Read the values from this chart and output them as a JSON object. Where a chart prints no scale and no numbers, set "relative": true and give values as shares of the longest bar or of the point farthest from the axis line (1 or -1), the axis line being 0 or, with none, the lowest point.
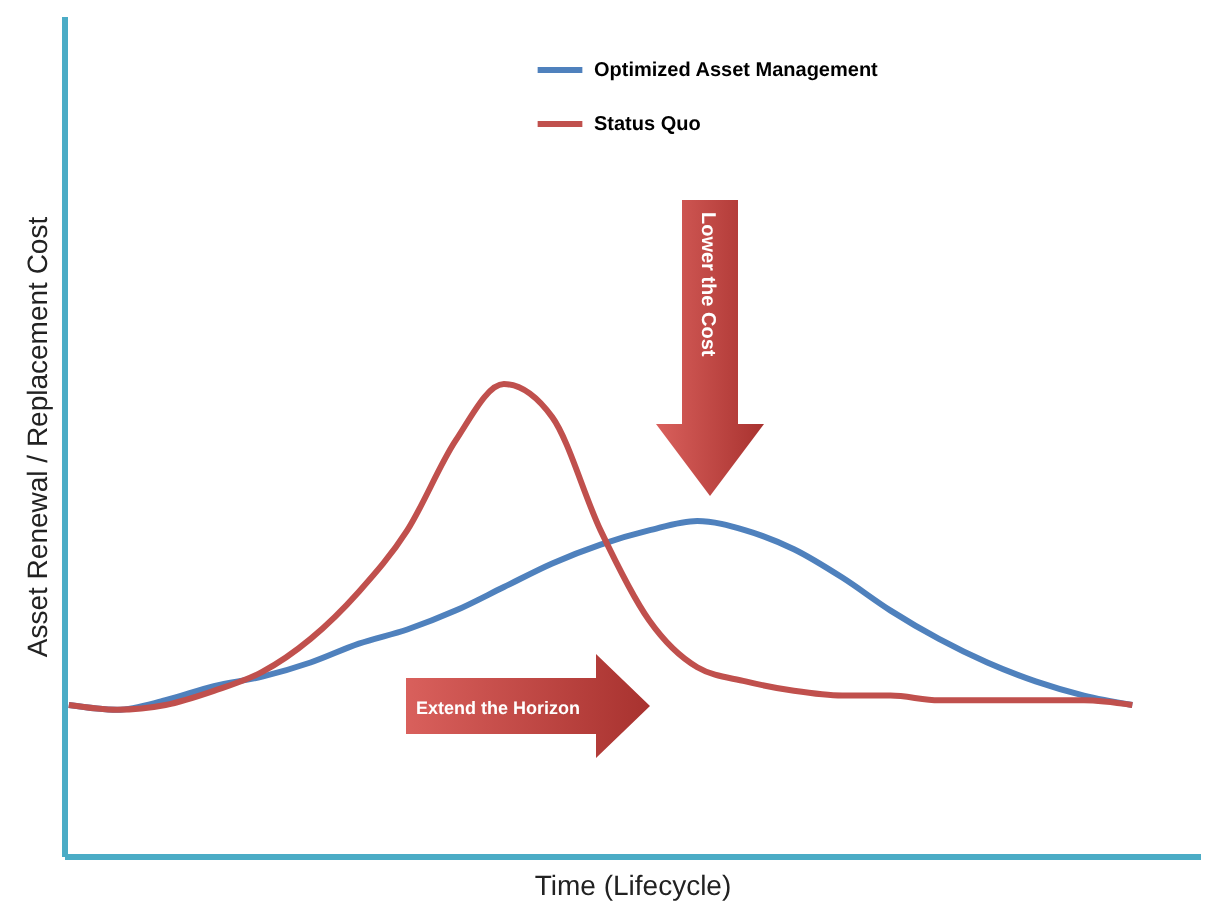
{
  "chart_data": {
    "type": "line",
    "relative": true,
    "xlabel": "Time (Lifecycle)",
    "ylabel": "Asset Renewal / Replacement Cost",
    "legend": "top",
    "categories": [
      null,
      null,
      null,
      null,
      null,
      null,
      null,
      null,
      null,
      null,
      null,
      null,
      null,
      null,
      null,
      null,
      null,
      null,
      null,
      null,
      null,
      null,
      null
    ],
    "series": [
      {
        "name": "Optimized Asset Management",
        "color": "#4f81bd",
        "values": [
          0.32,
          0.31,
          0.33,
          0.36,
          0.38,
          0.41,
          0.45,
          0.48,
          0.52,
          0.57,
          0.62,
          0.66,
          0.69,
          0.71,
          0.69,
          0.65,
          0.59,
          0.52,
          0.46,
          0.41,
          0.37,
          0.34,
          0.32
        ]
      },
      {
        "name": "Status Quo",
        "color": "#c0504d",
        "values": [
          0.32,
          0.31,
          0.32,
          0.35,
          0.39,
          0.46,
          0.56,
          0.69,
          0.88,
          1,
          0.93,
          0.69,
          0.5,
          0.4,
          0.37,
          0.35,
          0.34,
          0.34,
          0.33,
          0.33,
          0.33,
          0.33,
          0.32
        ]
      }
    ],
    "annotations": [
      "Lower the Cost",
      "Extend the Horizon"
    ]
  }
}
